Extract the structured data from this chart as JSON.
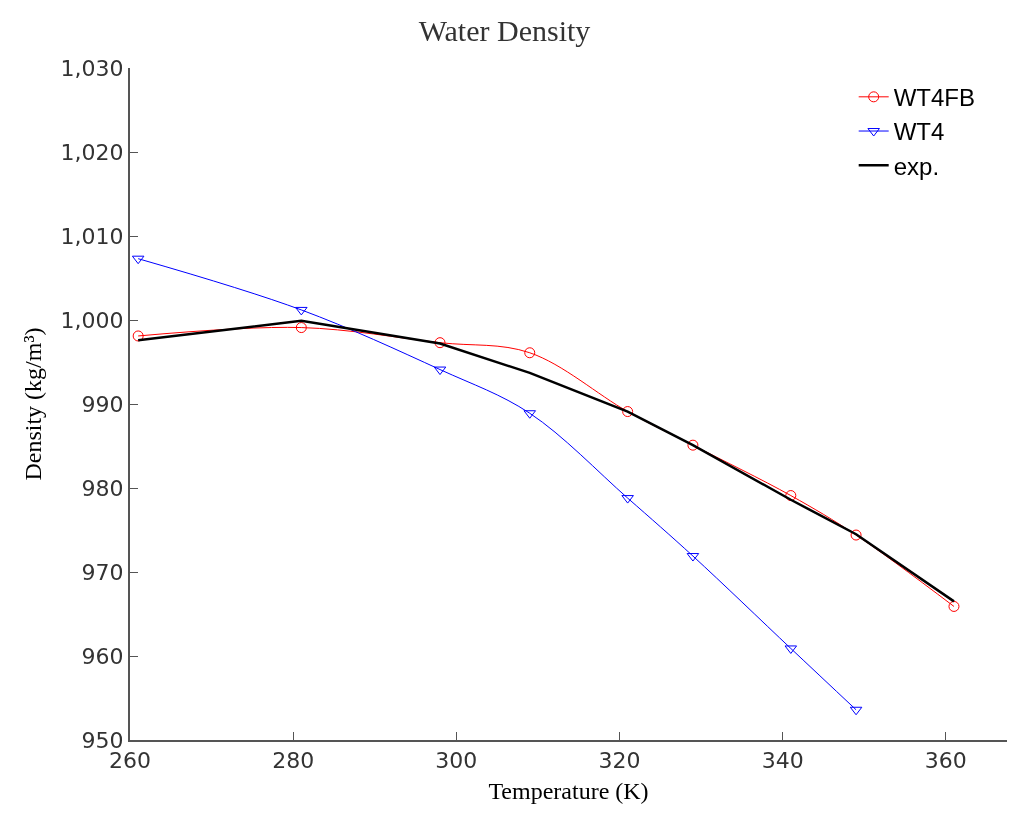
{
  "chart_data": {
    "type": "line",
    "title": "Water Density",
    "xlabel": "Temperature (K)",
    "ylabel": "Density (kg/m³)",
    "x": [
      261,
      281,
      298,
      309,
      321,
      329,
      341,
      349,
      361
    ],
    "series": [
      {
        "name": "WT4FB",
        "color": "#ff0000",
        "marker": "circle",
        "values": [
          998.1,
          999.1,
          997.3,
          996.1,
          989.1,
          985.1,
          979.1,
          974.4,
          965.9
        ]
      },
      {
        "name": "WT4",
        "color": "#0000ff",
        "marker": "triangle",
        "x": [
          261,
          281,
          298,
          309,
          321,
          329,
          341,
          349
        ],
        "values": [
          1007.3,
          1001.2,
          994.1,
          988.9,
          978.8,
          971.9,
          960.9,
          953.6
        ]
      },
      {
        "name": "exp.",
        "color": "#000000",
        "marker": "none",
        "values": [
          997.6,
          999.9,
          997.2,
          993.7,
          989.1,
          985.1,
          978.6,
          974.5,
          966.5
        ]
      }
    ],
    "xlim": [
      260,
      367.5
    ],
    "xticks": [
      260,
      280,
      300,
      320,
      340,
      360
    ],
    "ylim": [
      950,
      1030
    ],
    "yticks": [
      950,
      960,
      970,
      980,
      990,
      {
        "value": 1000,
        "label": "1,000"
      },
      {
        "value": 1010,
        "label": "1,010"
      },
      {
        "value": 1020,
        "label": "1,020"
      },
      {
        "value": 1030,
        "label": "1,030"
      }
    ],
    "grid": false,
    "legend": "top right"
  }
}
